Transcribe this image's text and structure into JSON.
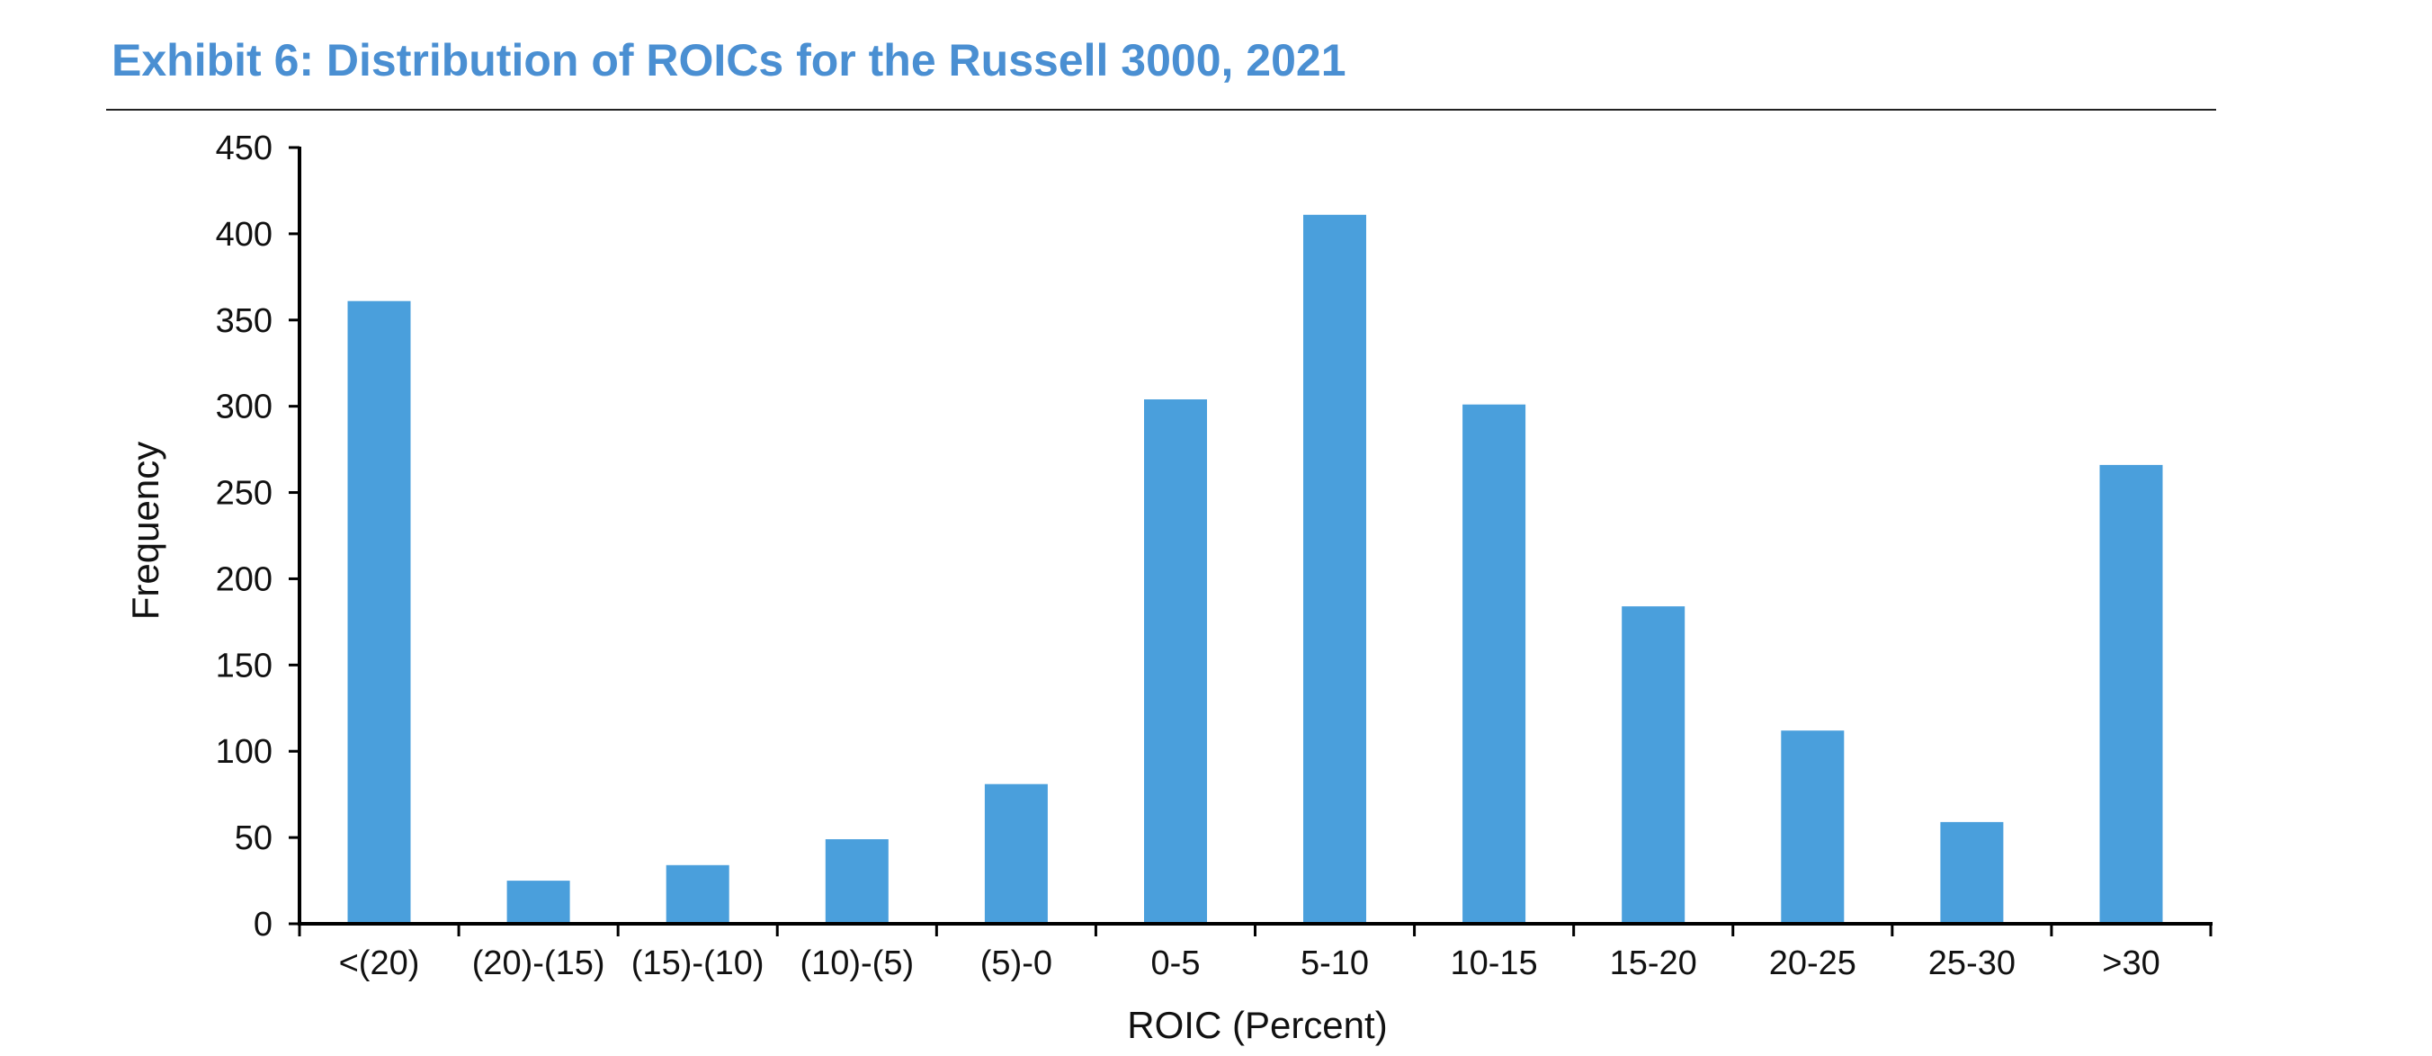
{
  "chart_data": {
    "type": "bar",
    "title": "Exhibit 6: Distribution of ROICs for the Russell 3000, 2021",
    "xlabel": "ROIC (Percent)",
    "ylabel": "Frequency",
    "categories": [
      "<(20)",
      "(20)-(15)",
      "(15)-(10)",
      "(10)-(5)",
      "(5)-0",
      "0-5",
      "5-10",
      "10-15",
      "15-20",
      "20-25",
      "25-30",
      ">30"
    ],
    "values": [
      361,
      25,
      34,
      49,
      81,
      304,
      411,
      301,
      184,
      112,
      59,
      266
    ],
    "ylim": [
      0,
      450
    ],
    "yticks": [
      0,
      50,
      100,
      150,
      200,
      250,
      300,
      350,
      400,
      450
    ],
    "grid": false,
    "legend": "none",
    "colors": {
      "bar": "#4a9fdc",
      "title": "#4a8fd2",
      "axis": "#000000"
    }
  }
}
